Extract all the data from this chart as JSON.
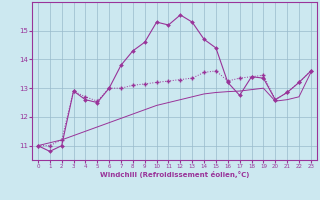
{
  "xlabel": "Windchill (Refroidissement éolien,°C)",
  "x_values": [
    0,
    1,
    2,
    3,
    4,
    5,
    6,
    7,
    8,
    9,
    10,
    11,
    12,
    13,
    14,
    15,
    16,
    17,
    18,
    19,
    20,
    21,
    22,
    23
  ],
  "line1_y": [
    11.0,
    10.8,
    11.0,
    12.9,
    12.6,
    12.5,
    13.0,
    13.8,
    14.3,
    14.6,
    15.3,
    15.2,
    15.55,
    15.3,
    14.7,
    14.4,
    13.2,
    12.75,
    13.4,
    13.35,
    12.6,
    12.85,
    13.2,
    13.6
  ],
  "line2_y": [
    11.0,
    11.0,
    11.2,
    12.9,
    12.7,
    12.55,
    13.0,
    13.0,
    13.1,
    13.15,
    13.2,
    13.25,
    13.3,
    13.35,
    13.55,
    13.6,
    13.25,
    13.35,
    13.4,
    13.45,
    12.6,
    12.85,
    13.2,
    13.6
  ],
  "line3_y": [
    11.0,
    11.1,
    11.2,
    11.35,
    11.5,
    11.65,
    11.8,
    11.95,
    12.1,
    12.25,
    12.4,
    12.5,
    12.6,
    12.7,
    12.8,
    12.85,
    12.88,
    12.9,
    12.95,
    13.0,
    12.55,
    12.6,
    12.7,
    13.55
  ],
  "line_color": "#993399",
  "bg_color": "#cce8f0",
  "grid_color": "#99bbcc",
  "ylim": [
    10.5,
    16.0
  ],
  "xlim": [
    -0.5,
    23.5
  ],
  "yticks": [
    11,
    12,
    13,
    14,
    15
  ],
  "xticks": [
    0,
    1,
    2,
    3,
    4,
    5,
    6,
    7,
    8,
    9,
    10,
    11,
    12,
    13,
    14,
    15,
    16,
    17,
    18,
    19,
    20,
    21,
    22,
    23
  ]
}
